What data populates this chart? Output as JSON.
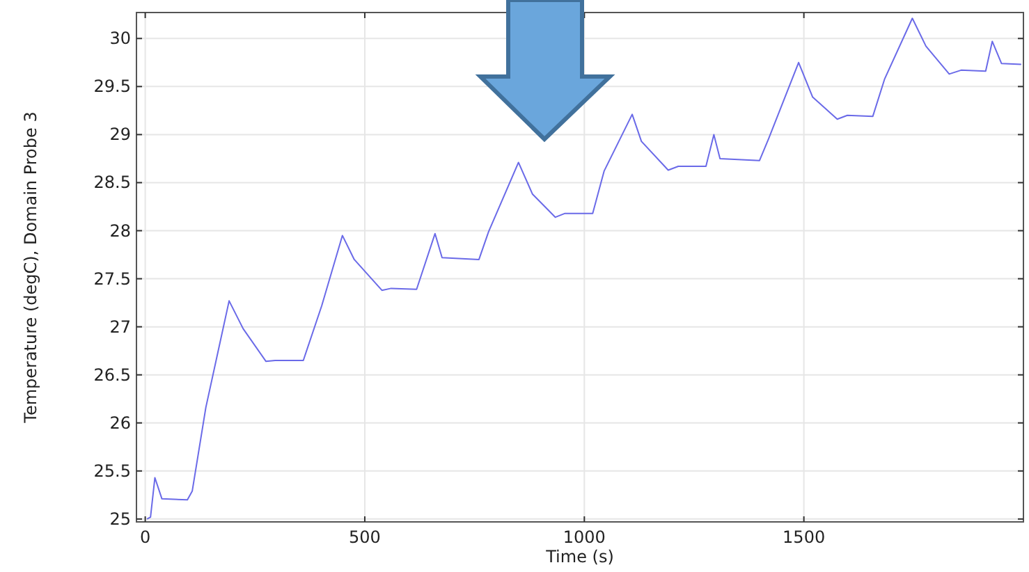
{
  "chart_data": {
    "type": "line",
    "xlabel": "Time (s)",
    "ylabel": "Temperature (degC), Domain Probe 3",
    "xlim": [
      -20,
      2000
    ],
    "ylim": [
      24.97,
      30.27
    ],
    "xticks": [
      0,
      500,
      1000,
      1500
    ],
    "yticks": [
      25,
      25.5,
      26,
      26.5,
      27,
      27.5,
      28,
      28.5,
      29,
      29.5,
      30
    ],
    "grid": true,
    "series": [
      {
        "color": "#6a6ae8",
        "x": [
          4,
          12,
          22,
          38,
          96,
          107,
          138,
          191,
          223,
          275,
          296,
          360,
          402,
          449,
          476,
          539,
          560,
          618,
          660,
          676,
          760,
          782,
          850,
          882,
          934,
          956,
          1019,
          1045,
          1109,
          1130,
          1191,
          1214,
          1277,
          1295,
          1309,
          1399,
          1420,
          1488,
          1520,
          1576,
          1599,
          1657,
          1684,
          1747,
          1778,
          1831,
          1858,
          1914,
          1929,
          1950,
          1995
        ],
        "values": [
          25.0,
          25.02,
          25.43,
          25.21,
          25.2,
          25.29,
          26.16,
          27.27,
          26.98,
          26.64,
          26.65,
          26.65,
          27.22,
          27.95,
          27.7,
          27.38,
          27.4,
          27.39,
          27.97,
          27.72,
          27.7,
          27.99,
          28.71,
          28.38,
          28.14,
          28.18,
          28.18,
          28.62,
          29.21,
          28.93,
          28.63,
          28.67,
          28.67,
          29.0,
          28.75,
          28.73,
          28.96,
          29.75,
          29.39,
          29.16,
          29.2,
          29.19,
          29.58,
          30.21,
          29.92,
          29.63,
          29.67,
          29.66,
          29.97,
          29.74,
          29.73
        ]
      }
    ]
  }
}
